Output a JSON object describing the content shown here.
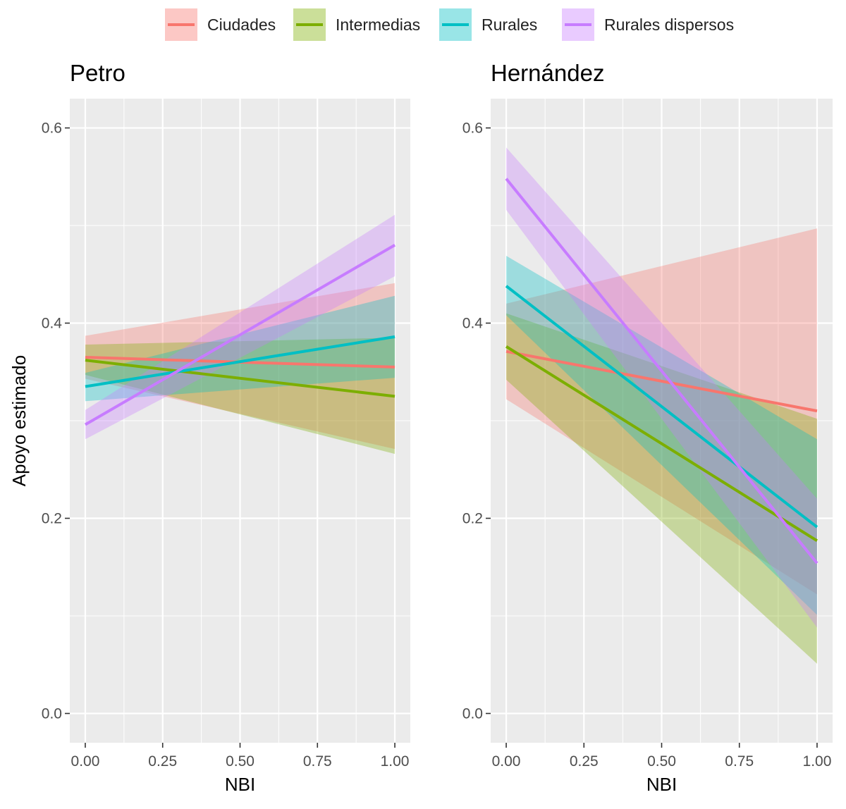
{
  "chart_data": {
    "type": "line",
    "description_free": true,
    "ylabel": "Apoyo estimado",
    "xlabel": "NBI",
    "ylim": [
      -0.03,
      0.63
    ],
    "xlim": [
      -0.05,
      1.05
    ],
    "yticks": [
      0.0,
      0.2,
      0.4,
      0.6
    ],
    "ytick_labels": [
      "0.0",
      "0.2",
      "0.4",
      "0.6"
    ],
    "xticks": [
      0.0,
      0.25,
      0.5,
      0.75,
      1.0
    ],
    "xtick_labels": [
      "0.00",
      "0.25",
      "0.50",
      "0.75",
      "1.00"
    ],
    "grid": true,
    "legend_position": "top",
    "legend": [
      {
        "name": "Ciudades",
        "color": "#F8766D"
      },
      {
        "name": "Intermedias",
        "color": "#7CAE00"
      },
      {
        "name": "Rurales",
        "color": "#00BFC4"
      },
      {
        "name": "Rurales dispersos",
        "color": "#C77CFF"
      }
    ],
    "panels": [
      {
        "title": "Petro",
        "series": [
          {
            "name": "Ciudades",
            "x": [
              0,
              1
            ],
            "y": [
              0.365,
              0.355
            ],
            "lower": [
              0.343,
              0.271
            ],
            "upper": [
              0.387,
              0.441
            ]
          },
          {
            "name": "Intermedias",
            "x": [
              0,
              1
            ],
            "y": [
              0.362,
              0.325
            ],
            "lower": [
              0.347,
              0.266
            ],
            "upper": [
              0.378,
              0.385
            ]
          },
          {
            "name": "Rurales",
            "x": [
              0,
              1
            ],
            "y": [
              0.335,
              0.386
            ],
            "lower": [
              0.32,
              0.344
            ],
            "upper": [
              0.349,
              0.428
            ]
          },
          {
            "name": "Rurales dispersos",
            "x": [
              0,
              1
            ],
            "y": [
              0.296,
              0.48
            ],
            "lower": [
              0.281,
              0.448
            ],
            "upper": [
              0.311,
              0.511
            ]
          }
        ]
      },
      {
        "title": "Hernández",
        "series": [
          {
            "name": "Ciudades",
            "x": [
              0,
              1
            ],
            "y": [
              0.371,
              0.31
            ],
            "lower": [
              0.322,
              0.122
            ],
            "upper": [
              0.42,
              0.497
            ]
          },
          {
            "name": "Intermedias",
            "x": [
              0,
              1
            ],
            "y": [
              0.376,
              0.177
            ],
            "lower": [
              0.342,
              0.051
            ],
            "upper": [
              0.41,
              0.302
            ]
          },
          {
            "name": "Rurales",
            "x": [
              0,
              1
            ],
            "y": [
              0.438,
              0.191
            ],
            "lower": [
              0.408,
              0.101
            ],
            "upper": [
              0.469,
              0.281
            ]
          },
          {
            "name": "Rurales dispersos",
            "x": [
              0,
              1
            ],
            "y": [
              0.548,
              0.154
            ],
            "lower": [
              0.516,
              0.088
            ],
            "upper": [
              0.58,
              0.22
            ]
          }
        ]
      }
    ]
  }
}
